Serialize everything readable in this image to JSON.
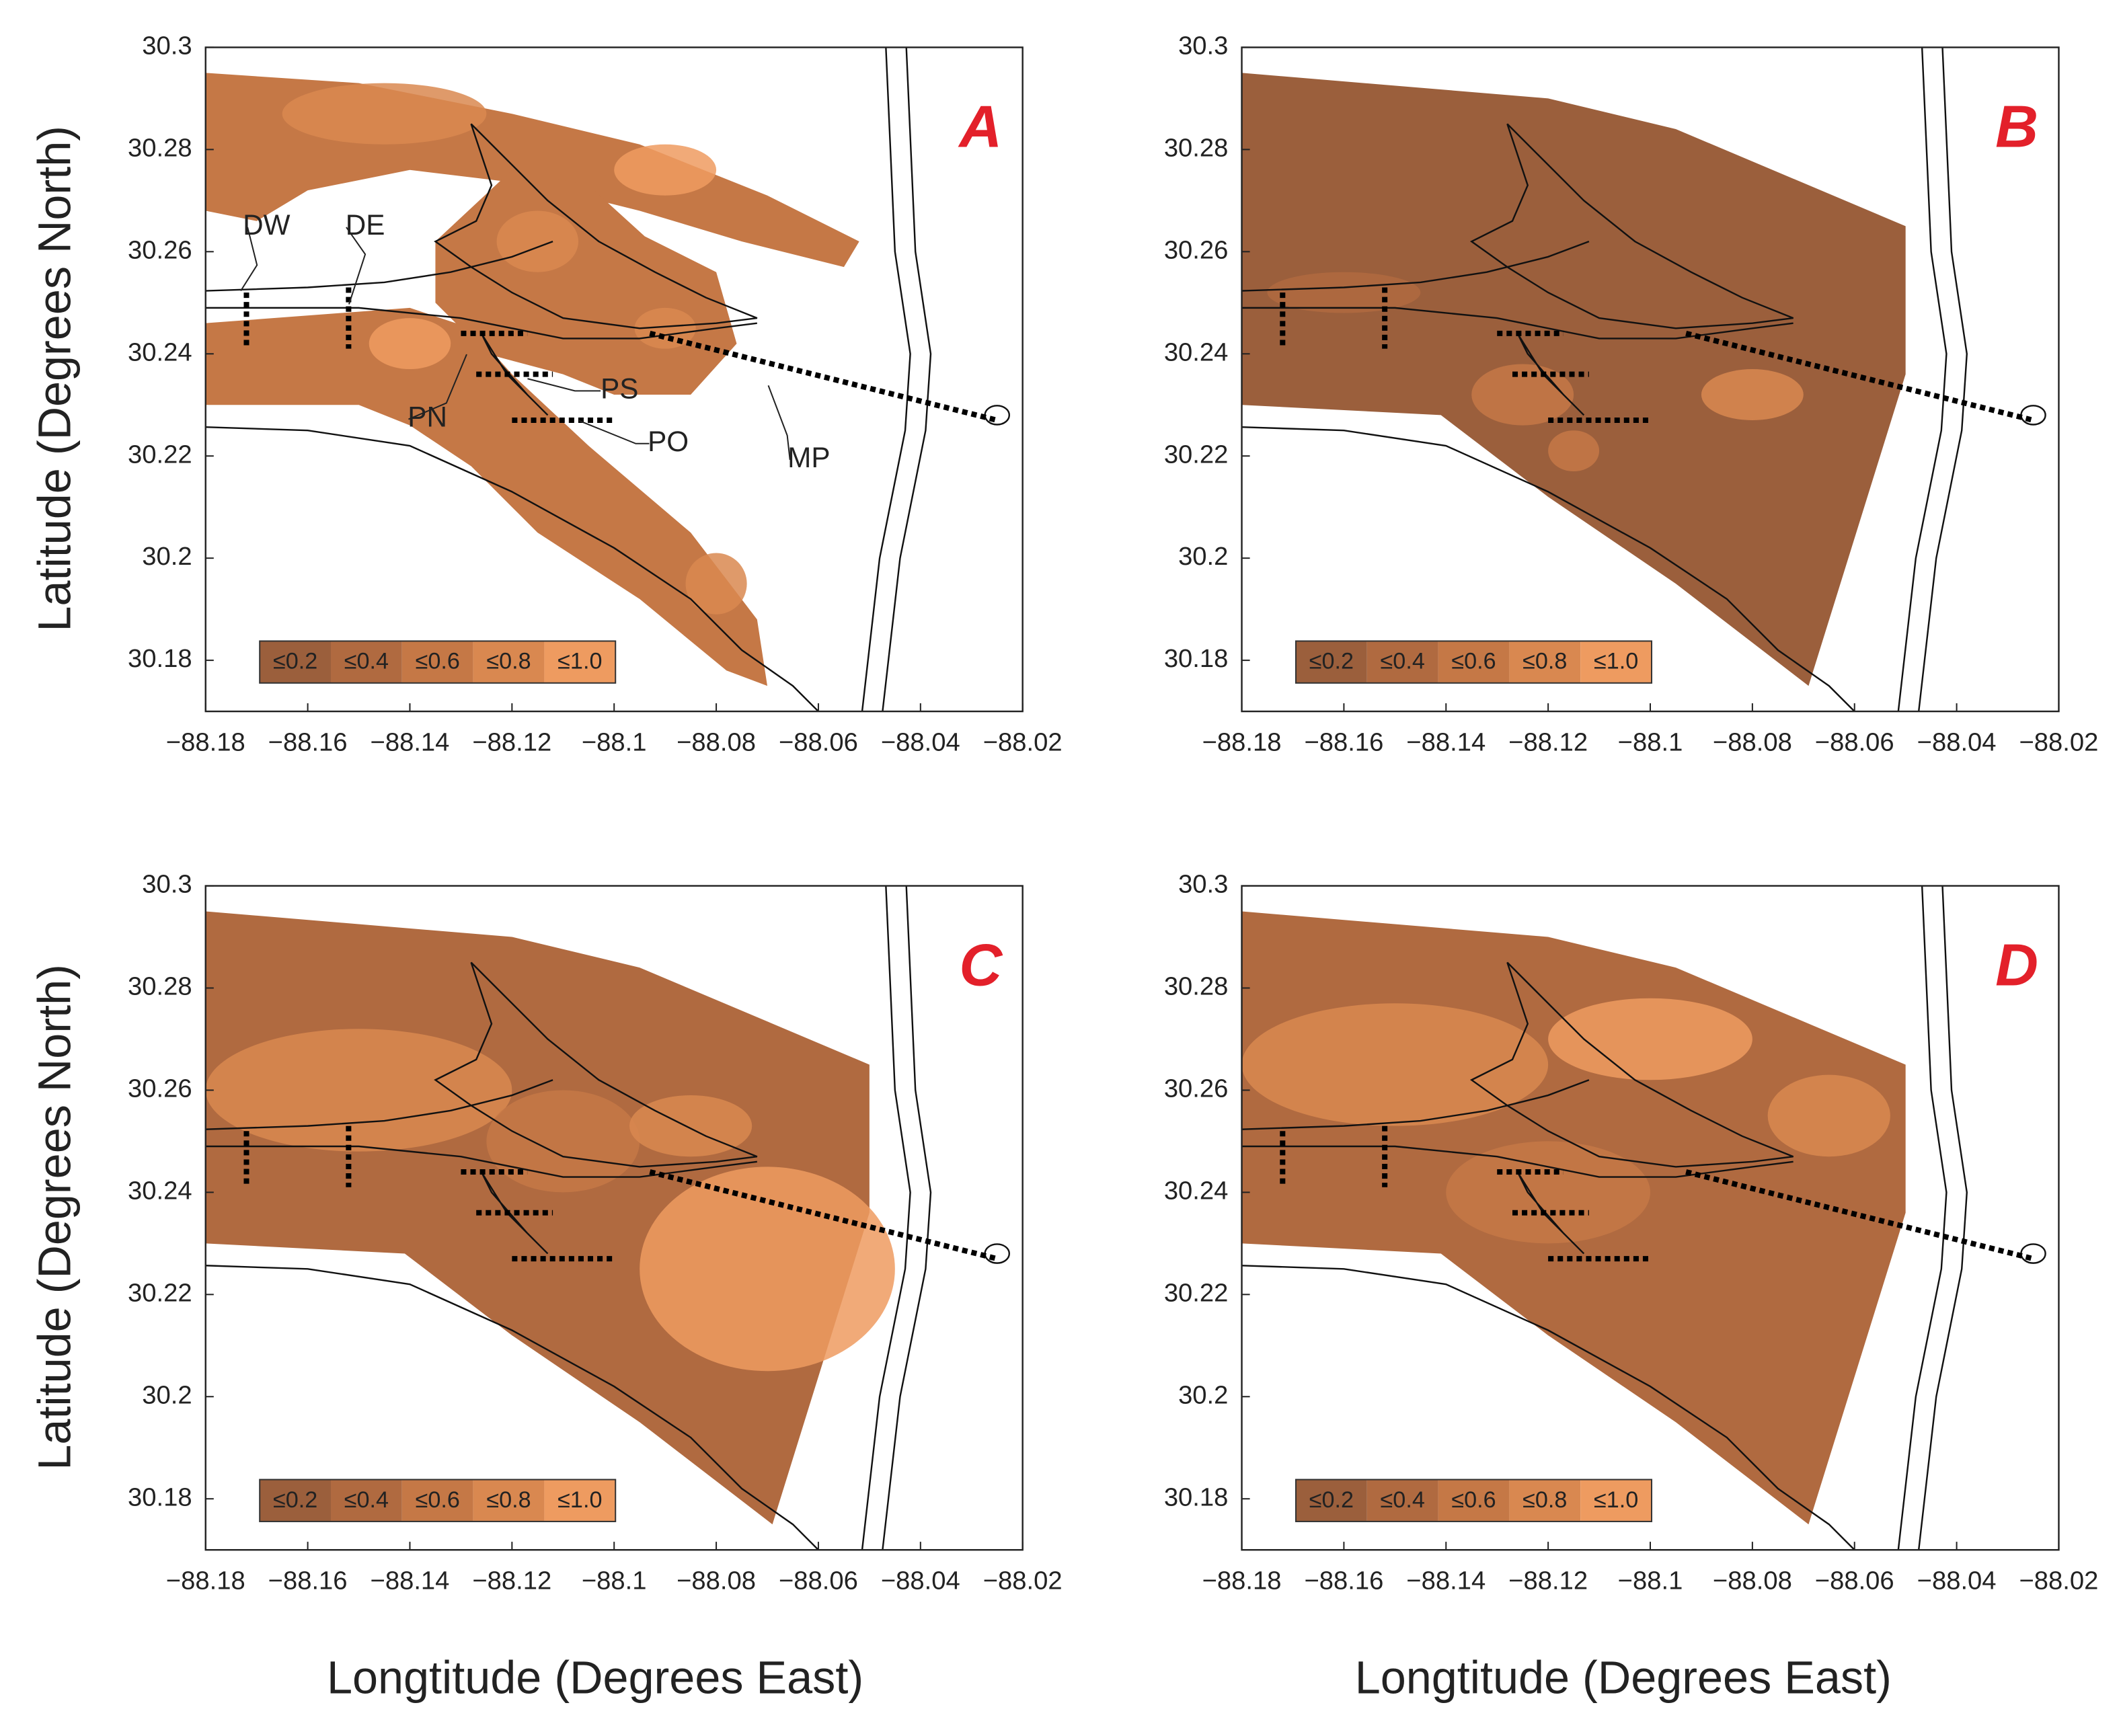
{
  "figure": {
    "x_axis_label": "Longtitude (Degrees East)",
    "y_axis_label": "Latitude (Degrees North)",
    "xlim": [
      -88.18,
      -88.02
    ],
    "ylim": [
      30.17,
      30.3
    ],
    "xticks": [
      {
        "value": -88.18,
        "label": "−88.18"
      },
      {
        "value": -88.16,
        "label": "−88.16"
      },
      {
        "value": -88.14,
        "label": "−88.14"
      },
      {
        "value": -88.12,
        "label": "−88.12"
      },
      {
        "value": -88.1,
        "label": "−88.1"
      },
      {
        "value": -88.08,
        "label": "−88.08"
      },
      {
        "value": -88.06,
        "label": "−88.06"
      },
      {
        "value": -88.04,
        "label": "−88.04"
      },
      {
        "value": -88.02,
        "label": "−88.02"
      }
    ],
    "yticks": [
      30.3,
      30.28,
      30.26,
      30.24,
      30.22,
      30.2,
      30.18
    ],
    "legend": [
      {
        "label": "≤0.2",
        "color": "#9b5f3c"
      },
      {
        "label": "≤0.4",
        "color": "#b06a40"
      },
      {
        "label": "≤0.6",
        "color": "#c57846"
      },
      {
        "label": "≤0.8",
        "color": "#d98850"
      },
      {
        "label": "≤1.0",
        "color": "#ee9b60"
      }
    ],
    "panels": [
      {
        "label": "A",
        "annotations": [
          "DW",
          "DE",
          "PN",
          "PS",
          "PO",
          "MP"
        ]
      },
      {
        "label": "B"
      },
      {
        "label": "C"
      },
      {
        "label": "D"
      }
    ]
  }
}
